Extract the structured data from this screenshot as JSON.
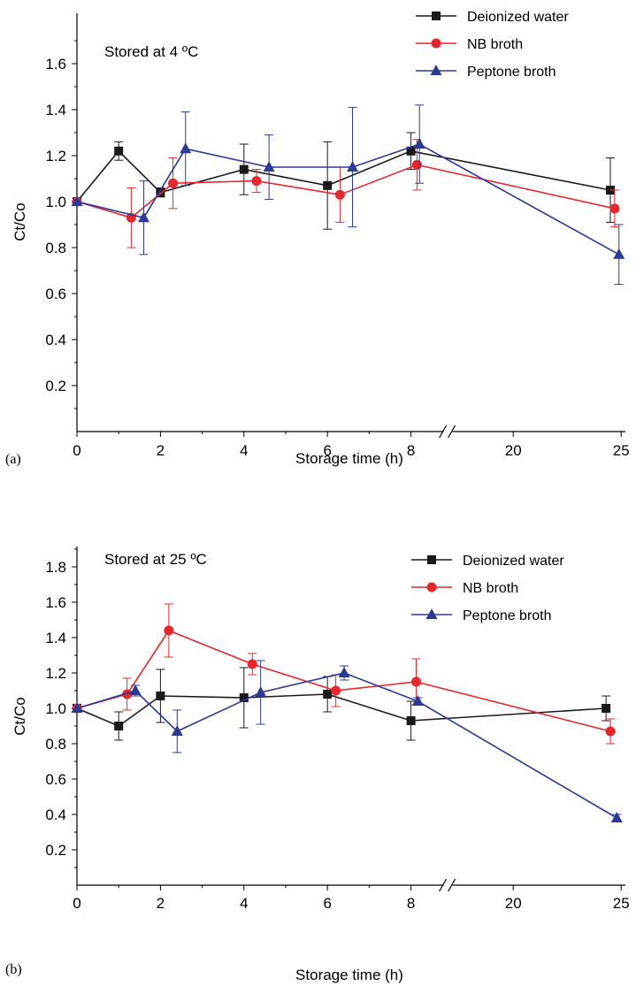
{
  "colors": {
    "Deionized water": "#1a1a1a",
    "NB broth": "#e8262b",
    "Peptone broth": "#2b3a97"
  },
  "chart_data": [
    {
      "type": "line",
      "panel_label": "(a)",
      "annotation": "Stored at 4 ºC",
      "xlabel": "Storage time (h)",
      "ylabel": "Ct/Co",
      "ylim": [
        0,
        1.7
      ],
      "y_ticks": [
        "0.2",
        "0.4",
        "0.6",
        "0.8",
        "1.0",
        "1.2",
        "1.4",
        "1.6"
      ],
      "x_ticks": [
        "0",
        "2",
        "4",
        "6",
        "8",
        "20",
        "25"
      ],
      "x_axis_break": "between 8 and 20",
      "legend_position": "top-right",
      "series": [
        {
          "name": "Deionized water",
          "marker": "square",
          "x": [
            0,
            1,
            2,
            4,
            6,
            8,
            24.5
          ],
          "y": [
            1.0,
            1.22,
            1.04,
            1.14,
            1.07,
            1.22,
            1.05
          ],
          "err": [
            0,
            0.04,
            0.02,
            0.11,
            0.19,
            0.08,
            0.14
          ]
        },
        {
          "name": "NB broth",
          "marker": "circle",
          "x": [
            0,
            1.3,
            2.3,
            4.3,
            6.3,
            8.3,
            24.7
          ],
          "y": [
            1.0,
            0.93,
            1.08,
            1.09,
            1.03,
            1.16,
            0.97
          ],
          "err": [
            0,
            0.13,
            0.11,
            0.05,
            0.12,
            0.11,
            0.08
          ]
        },
        {
          "name": "Peptone broth",
          "marker": "triangle",
          "x": [
            0,
            1.6,
            2.6,
            4.6,
            6.6,
            8.6,
            24.9
          ],
          "y": [
            1.0,
            0.93,
            1.23,
            1.15,
            1.15,
            1.25,
            0.77
          ],
          "err": [
            0,
            0.16,
            0.16,
            0.14,
            0.26,
            0.17,
            0.13
          ]
        }
      ]
    },
    {
      "type": "line",
      "panel_label": "(b)",
      "annotation": "Stored at 25 ºC",
      "xlabel": "Storage time (h)",
      "ylabel": "Ct/Co",
      "ylim": [
        0,
        1.9
      ],
      "y_ticks": [
        "0.2",
        "0.4",
        "0.6",
        "0.8",
        "1.0",
        "1.2",
        "1.4",
        "1.6",
        "1.8"
      ],
      "x_ticks": [
        "0",
        "2",
        "4",
        "6",
        "8",
        "20",
        "25"
      ],
      "x_axis_break": "between 8 and 20",
      "legend_position": "top-right",
      "series": [
        {
          "name": "Deionized water",
          "marker": "square",
          "x": [
            0,
            1,
            2,
            4,
            6,
            8,
            24.3
          ],
          "y": [
            1.0,
            0.9,
            1.07,
            1.06,
            1.08,
            0.93,
            1.0
          ],
          "err": [
            0,
            0.08,
            0.15,
            0.17,
            0.1,
            0.11,
            0.07
          ]
        },
        {
          "name": "NB broth",
          "marker": "circle",
          "x": [
            0,
            1.2,
            2.2,
            4.2,
            6.2,
            8.2,
            24.5
          ],
          "y": [
            1.0,
            1.08,
            1.44,
            1.25,
            1.1,
            1.15,
            0.87
          ],
          "err": [
            0,
            0.09,
            0.15,
            0.06,
            0.09,
            0.13,
            0.07
          ]
        },
        {
          "name": "Peptone broth",
          "marker": "triangle",
          "x": [
            0,
            1.4,
            2.4,
            4.4,
            6.4,
            8.4,
            24.8
          ],
          "y": [
            1.0,
            1.1,
            0.87,
            1.09,
            1.2,
            1.04,
            0.38
          ],
          "err": [
            0,
            0.03,
            0.12,
            0.18,
            0.04,
            0.02,
            0.02
          ]
        }
      ]
    }
  ]
}
